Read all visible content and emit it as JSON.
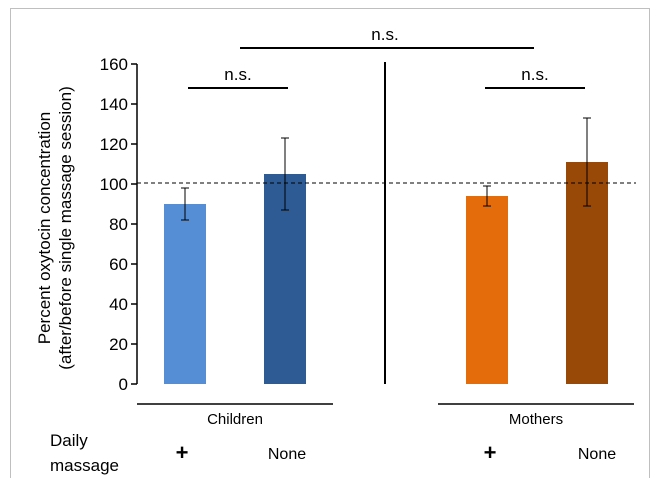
{
  "chart_data": {
    "type": "bar",
    "ylabel_line1": "Percent oxytocin concentration",
    "ylabel_line2": "(after/before single massage session)",
    "ylim": [
      0,
      160
    ],
    "yticks": [
      "0",
      "20",
      "40",
      "60",
      "80",
      "100",
      "120",
      "140",
      "160"
    ],
    "reference_line": 100,
    "groups": [
      "Children",
      "Mothers"
    ],
    "bars": [
      {
        "group": "Children",
        "daily_massage": "+",
        "value": 90,
        "error_low": 82,
        "error_high": 98,
        "color": "#558ed5"
      },
      {
        "group": "Children",
        "daily_massage": "None",
        "value": 105,
        "error_low": 87,
        "error_high": 123,
        "color": "#2e5b94"
      },
      {
        "group": "Mothers",
        "daily_massage": "+",
        "value": 94,
        "error_low": 89,
        "error_high": 99,
        "color": "#e46c0a"
      },
      {
        "group": "Mothers",
        "daily_massage": "None",
        "value": 111,
        "error_low": 89,
        "error_high": 133,
        "color": "#984807"
      }
    ],
    "significance": [
      {
        "label": "n.s.",
        "between": "Children bars"
      },
      {
        "label": "n.s.",
        "between": "Mothers bars"
      },
      {
        "label": "n.s.",
        "between": "Children and Mothers"
      }
    ],
    "row_label_line1": "Daily",
    "row_label_line2": "massage"
  }
}
